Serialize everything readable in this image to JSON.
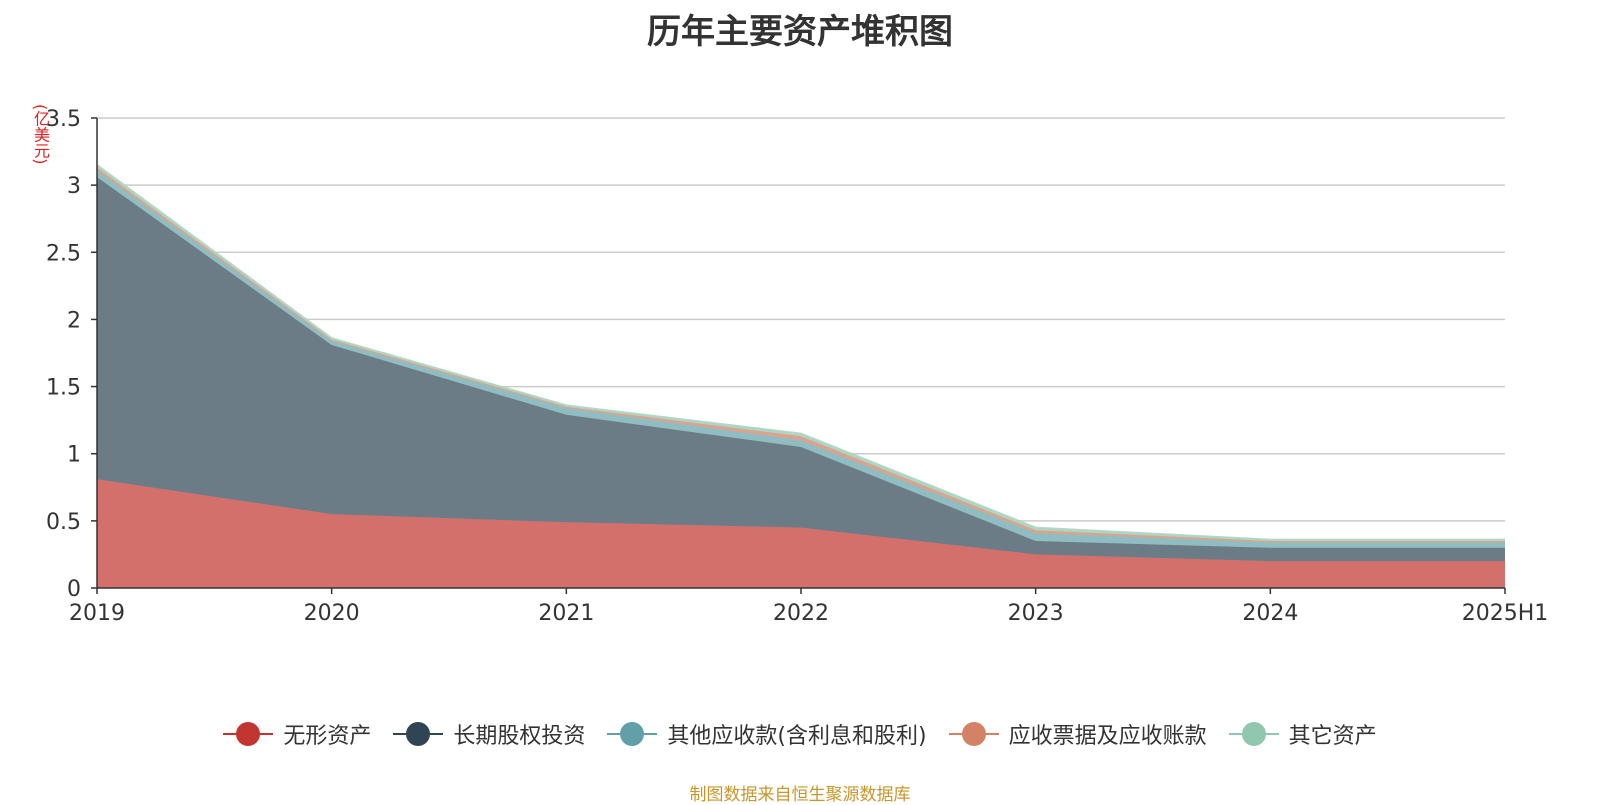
{
  "chart_data": {
    "type": "area",
    "stacked": true,
    "title": "历年主要资产堆积图",
    "ylabel": "(亿美元)",
    "xlabel": "",
    "categories": [
      "2019",
      "2020",
      "2021",
      "2022",
      "2023",
      "2024",
      "2025H1"
    ],
    "ylim": [
      0,
      3.5
    ],
    "yticks": [
      "0",
      "0.5",
      "1",
      "1.5",
      "2",
      "2.5",
      "3",
      "3.5"
    ],
    "grid": true,
    "legend_position": "bottom",
    "series": [
      {
        "name": "无形资产",
        "color": "#c23531",
        "fill": "#d4706c",
        "values": [
          0.81,
          0.55,
          0.49,
          0.45,
          0.25,
          0.2,
          0.2
        ]
      },
      {
        "name": "长期股权投资",
        "color": "#2f4554",
        "fill": "#6b7c87",
        "values": [
          2.25,
          1.26,
          0.8,
          0.6,
          0.1,
          0.1,
          0.1
        ]
      },
      {
        "name": "其他应收款(含利息和股利)",
        "color": "#61a0a8",
        "fill": "#8fbdc2",
        "values": [
          0.05,
          0.03,
          0.05,
          0.05,
          0.06,
          0.04,
          0.04
        ]
      },
      {
        "name": "应收票据及应收账款",
        "color": "#d48265",
        "fill": "#dca38c",
        "values": [
          0.02,
          0.01,
          0.01,
          0.03,
          0.02,
          0.01,
          0.01
        ]
      },
      {
        "name": "其它资产",
        "color": "#91c7ae",
        "fill": "#add5c3",
        "values": [
          0.02,
          0.01,
          0.01,
          0.02,
          0.02,
          0.01,
          0.01
        ]
      }
    ]
  },
  "legend_line_colors": [
    "#c23531",
    "#2f4554",
    "#61a0a8",
    "#d48265",
    "#91c7ae"
  ],
  "source": "制图数据来自恒生聚源数据库"
}
